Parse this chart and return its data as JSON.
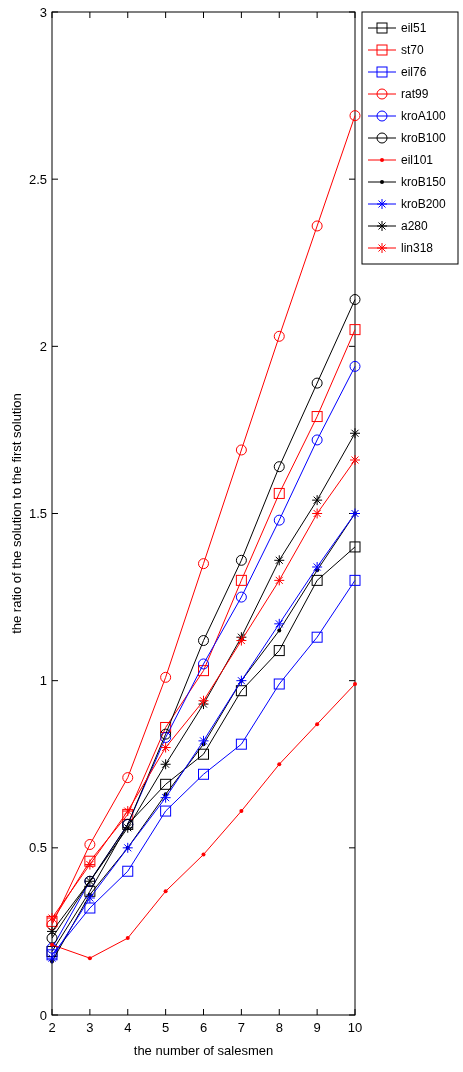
{
  "chart_data": {
    "type": "line",
    "xlabel": "the number of salesmen",
    "ylabel": "the ratio of the solution to the first solution",
    "x": [
      2,
      3,
      4,
      5,
      6,
      7,
      8,
      9,
      10
    ],
    "xlim": [
      2,
      10
    ],
    "xticks": [
      2,
      3,
      4,
      5,
      6,
      7,
      8,
      9,
      10
    ],
    "ylim": [
      0,
      3
    ],
    "yticks": [
      0,
      0.5,
      1,
      1.5,
      2,
      2.5,
      3
    ],
    "grid": false,
    "legend": "right",
    "line_style": "solid",
    "series": [
      {
        "name": "eil51",
        "color": "#000000",
        "marker": "square",
        "values": [
          0.19,
          0.37,
          0.57,
          0.69,
          0.78,
          0.97,
          1.09,
          1.3,
          1.4
        ]
      },
      {
        "name": "st70",
        "color": "#ff0000",
        "marker": "square",
        "values": [
          0.28,
          0.46,
          0.6,
          0.86,
          1.03,
          1.3,
          1.56,
          1.79,
          2.05
        ]
      },
      {
        "name": "eil76",
        "color": "#0000ff",
        "marker": "square",
        "values": [
          0.18,
          0.32,
          0.43,
          0.61,
          0.72,
          0.81,
          0.99,
          1.13,
          1.3
        ]
      },
      {
        "name": "rat99",
        "color": "#ff0000",
        "marker": "circle",
        "values": [
          0.27,
          0.51,
          0.71,
          1.01,
          1.35,
          1.69,
          2.03,
          2.36,
          2.69
        ]
      },
      {
        "name": "kroA100",
        "color": "#0000ff",
        "marker": "circle",
        "values": [
          0.2,
          0.4,
          0.57,
          0.83,
          1.05,
          1.25,
          1.48,
          1.72,
          1.94
        ]
      },
      {
        "name": "kroB100",
        "color": "#000000",
        "marker": "circle",
        "values": [
          0.23,
          0.4,
          0.57,
          0.84,
          1.12,
          1.36,
          1.64,
          1.89,
          2.14
        ]
      },
      {
        "name": "eil101",
        "color": "#ff0000",
        "values": [
          0.21,
          0.17,
          0.23,
          0.37,
          0.48,
          0.61,
          0.75,
          0.87,
          0.99
        ]
      },
      {
        "name": "kroB150",
        "color": "#000000",
        "values": [
          0.16,
          0.36,
          0.5,
          0.66,
          0.81,
          1.0,
          1.15,
          1.33,
          1.5
        ]
      },
      {
        "name": "kroB200",
        "color": "#0000ff",
        "marker": "cross",
        "values": [
          0.17,
          0.35,
          0.5,
          0.65,
          0.82,
          1.0,
          1.17,
          1.34,
          1.5
        ]
      },
      {
        "name": "a280",
        "color": "#000000",
        "marker": "cross",
        "values": [
          0.25,
          0.4,
          0.56,
          0.75,
          0.93,
          1.13,
          1.36,
          1.54,
          1.74
        ]
      },
      {
        "name": "lin318",
        "color": "#ff0000",
        "marker": "cross",
        "values": [
          0.29,
          0.45,
          0.61,
          0.8,
          0.94,
          1.12,
          1.3,
          1.5,
          1.66
        ]
      }
    ]
  }
}
